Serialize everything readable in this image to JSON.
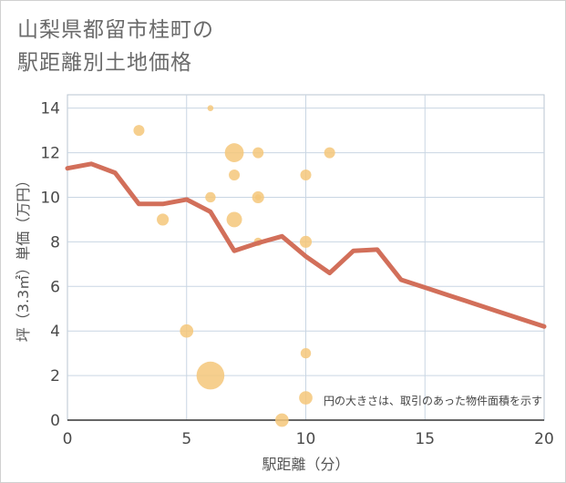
{
  "title_lines": [
    "山梨県都留市桂町の",
    "駅距離別土地価格"
  ],
  "colors": {
    "bubble": "#f5c77a",
    "line": "#d26f5a",
    "grid": "#c9d6e3",
    "plot_border": "#b8c4d0"
  },
  "chart_data": {
    "type": "scatter",
    "title": "山梨県都留市桂町の 駅距離別土地価格",
    "xlabel": "駅距離（分）",
    "ylabel": "坪（3.3㎡）単価（万円）",
    "xlim": [
      0,
      20
    ],
    "ylim": [
      0,
      14.6
    ],
    "x_ticks": [
      0,
      5,
      10,
      15,
      20
    ],
    "y_ticks": [
      0,
      2,
      4,
      6,
      8,
      10,
      12,
      14
    ],
    "grid": true,
    "note": "円の大きさは、取引のあった物件面積を示す",
    "bubbles": [
      {
        "x": 3,
        "y": 13.0,
        "size": 1.0
      },
      {
        "x": 4,
        "y": 9.0,
        "size": 1.2
      },
      {
        "x": 5,
        "y": 4.0,
        "size": 1.5
      },
      {
        "x": 6,
        "y": 14.0,
        "size": 0.3
      },
      {
        "x": 6,
        "y": 10.0,
        "size": 0.9
      },
      {
        "x": 6,
        "y": 2.0,
        "size": 6.5
      },
      {
        "x": 7,
        "y": 12.0,
        "size": 3.0
      },
      {
        "x": 7,
        "y": 11.0,
        "size": 1.0
      },
      {
        "x": 7,
        "y": 9.0,
        "size": 2.0
      },
      {
        "x": 8,
        "y": 12.0,
        "size": 1.0
      },
      {
        "x": 8,
        "y": 10.0,
        "size": 1.2
      },
      {
        "x": 8,
        "y": 10.0,
        "size": 0.3
      },
      {
        "x": 8,
        "y": 8.0,
        "size": 0.6
      },
      {
        "x": 9,
        "y": 0.0,
        "size": 1.5
      },
      {
        "x": 10,
        "y": 11.0,
        "size": 1.0
      },
      {
        "x": 10,
        "y": 8.0,
        "size": 1.2
      },
      {
        "x": 10,
        "y": 3.0,
        "size": 0.9
      },
      {
        "x": 10,
        "y": 1.0,
        "size": 1.5
      },
      {
        "x": 11,
        "y": 12.0,
        "size": 1.0
      }
    ],
    "series": [
      {
        "type": "line",
        "x": [
          0,
          1,
          2,
          3,
          4,
          5,
          6,
          7,
          8,
          9,
          10,
          11,
          12,
          13,
          14,
          15,
          16,
          17,
          18,
          19,
          20
        ],
        "values": [
          11.3,
          11.5,
          11.1,
          9.7,
          9.7,
          9.9,
          9.35,
          7.6,
          7.95,
          8.25,
          7.35,
          6.6,
          7.6,
          7.65,
          6.3,
          5.95,
          5.6,
          5.25,
          4.9,
          4.55,
          4.2
        ]
      }
    ]
  }
}
